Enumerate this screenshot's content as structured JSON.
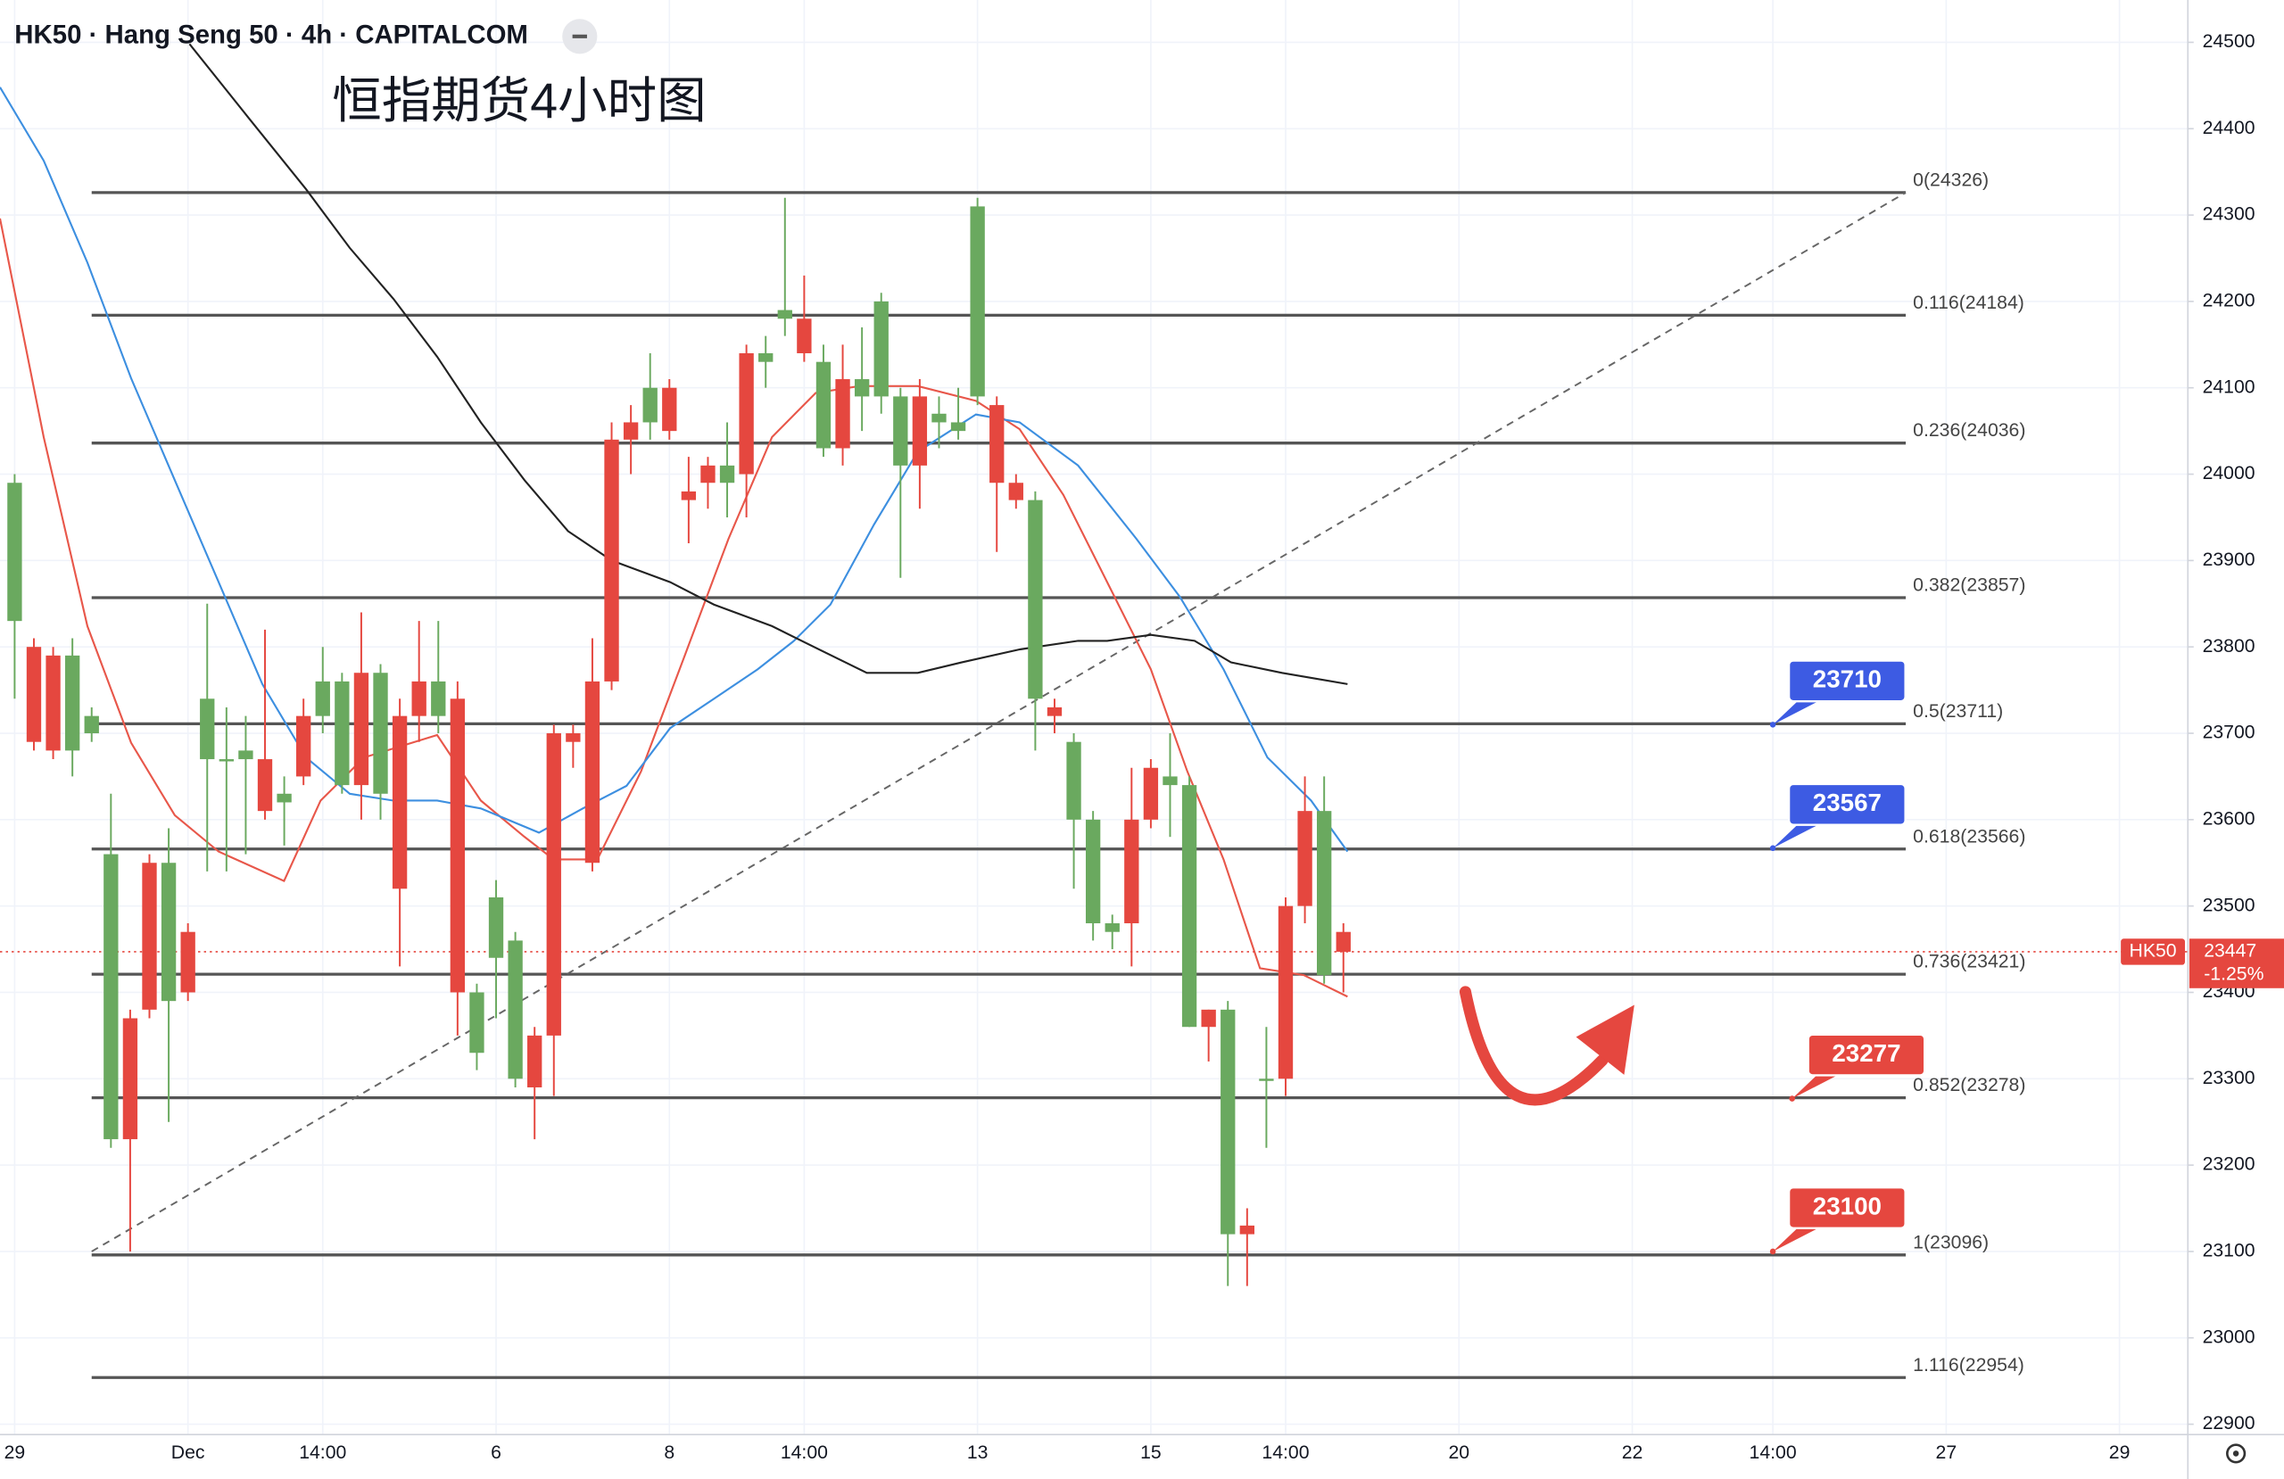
{
  "chart_data": {
    "type": "candlestick",
    "title": "HK50 · Hang Seng 50 · 4h · CAPITALCOM",
    "subtitle": "恒指期货4小时图",
    "up_color": "#6aa95f",
    "down_color": "#e5473f",
    "x": [
      0,
      1,
      2,
      3,
      4,
      5,
      6,
      7,
      8,
      9,
      10,
      11,
      12,
      13,
      14,
      15,
      16,
      17,
      18,
      19,
      20,
      21,
      22,
      23,
      24,
      25,
      26,
      27,
      28,
      29,
      30,
      31,
      32,
      33,
      34,
      35,
      36,
      37,
      38,
      39,
      40,
      41,
      42,
      43,
      44,
      45,
      46,
      47,
      48,
      49,
      50,
      51,
      52,
      53,
      54,
      55,
      56,
      57,
      58,
      59,
      60,
      61,
      62,
      63,
      64,
      65,
      66,
      67,
      68,
      69
    ],
    "open": [
      23830,
      23800,
      23790,
      23680,
      23700,
      23230,
      23370,
      23550,
      23390,
      23470,
      23670,
      23670,
      23670,
      23670,
      23620,
      23720,
      23720,
      23640,
      23770,
      23630,
      23720,
      23760,
      23720,
      23740,
      23330,
      23440,
      23300,
      23350,
      23700,
      23700,
      23760,
      24040,
      24060,
      24060,
      24100,
      23980,
      24010,
      23990,
      24140,
      24130,
      24180,
      24180,
      24030,
      24110,
      24090,
      24090,
      24010,
      24090,
      24060,
      24050,
      24090,
      24080,
      23990,
      23740,
      23730,
      23600,
      23480,
      23470,
      23600,
      23660,
      23640,
      23360,
      23380,
      23120,
      23130,
      23300,
      23500,
      23610,
      23420,
      23470
    ],
    "high": [
      24000,
      23810,
      23800,
      23810,
      23730,
      23630,
      23380,
      23560,
      23590,
      23480,
      23850,
      23730,
      23720,
      23820,
      23650,
      23740,
      23800,
      23770,
      23840,
      23780,
      23740,
      23830,
      23830,
      23760,
      23410,
      23530,
      23470,
      23360,
      23710,
      23710,
      23810,
      24060,
      24080,
      24140,
      24110,
      24020,
      24020,
      24060,
      24150,
      24160,
      24320,
      24230,
      24150,
      24150,
      24170,
      24210,
      24100,
      24110,
      24090,
      24100,
      24320,
      24090,
      24000,
      23980,
      23740,
      23700,
      23610,
      23490,
      23660,
      23670,
      23700,
      23650,
      23380,
      23390,
      23150,
      23360,
      23510,
      23650,
      23650,
      23480
    ],
    "low": [
      23740,
      23680,
      23670,
      23650,
      23690,
      23220,
      23100,
      23370,
      23250,
      23390,
      23540,
      23540,
      23560,
      23600,
      23570,
      23640,
      23700,
      23630,
      23600,
      23600,
      23430,
      23690,
      23700,
      23350,
      23310,
      23370,
      23290,
      23230,
      23280,
      23660,
      23540,
      23750,
      24000,
      24040,
      24040,
      23920,
      23960,
      23950,
      23950,
      24100,
      24160,
      24130,
      24020,
      24010,
      24050,
      24070,
      23880,
      23960,
      24030,
      24040,
      24080,
      23910,
      23960,
      23680,
      23700,
      23520,
      23460,
      23450,
      23430,
      23590,
      23580,
      23360,
      23320,
      23060,
      23060,
      23220,
      23280,
      23480,
      23410,
      23400
    ],
    "close": [
      23990,
      23690,
      23680,
      23790,
      23720,
      23560,
      23230,
      23380,
      23550,
      23400,
      23740,
      23670,
      23680,
      23610,
      23630,
      23650,
      23760,
      23760,
      23640,
      23770,
      23520,
      23720,
      23760,
      23400,
      23400,
      23510,
      23460,
      23290,
      23350,
      23690,
      23550,
      23760,
      24040,
      24100,
      24050,
      23970,
      23990,
      24010,
      24000,
      24140,
      24190,
      24140,
      24130,
      24030,
      24110,
      24200,
      24090,
      24010,
      24070,
      24060,
      24310,
      23990,
      23970,
      23970,
      23720,
      23690,
      23600,
      23480,
      23480,
      23600,
      23650,
      23640,
      23360,
      23380,
      23120,
      23300,
      23300,
      23500,
      23610,
      23447
    ],
    "moving_averages": [
      {
        "color": "#e8574a",
        "x": [
          -0.76,
          1.51,
          3.78,
          6.05,
          8.32,
          10.59,
          13.99,
          15.89,
          18.15,
          21.94,
          24.21,
          26.48,
          27.99,
          30.26,
          32.53,
          34.8,
          37.07,
          39.33,
          41.6,
          43.87,
          46.9,
          49.92,
          52.19,
          54.46,
          56.73,
          59,
          60.89,
          62.78,
          64.67,
          66.94,
          69.21
        ],
        "values": [
          24296,
          24043,
          23824,
          23689,
          23605,
          23563,
          23529,
          23622,
          23672,
          23698,
          23622,
          23580,
          23554,
          23554,
          23656,
          23790,
          23925,
          24043,
          24094,
          24102,
          24102,
          24085,
          24052,
          23976,
          23875,
          23774,
          23656,
          23554,
          23428,
          23420,
          23395
        ]
      },
      {
        "color": "#3d8fe0",
        "x": [
          -0.76,
          1.51,
          3.78,
          6.05,
          8.32,
          10.59,
          12.86,
          15.13,
          17.4,
          19.67,
          21.94,
          24.21,
          27.23,
          29.5,
          31.77,
          34.04,
          36.31,
          38.58,
          40.47,
          42.36,
          44.63,
          46.9,
          49.92,
          52.19,
          55.22,
          58.25,
          60.51,
          62.78,
          65.05,
          67.32,
          69.21
        ],
        "values": [
          24448,
          24363,
          24245,
          24111,
          23993,
          23875,
          23757,
          23672,
          23630,
          23622,
          23622,
          23613,
          23585,
          23613,
          23639,
          23706,
          23740,
          23774,
          23807,
          23849,
          23942,
          24026,
          24069,
          24060,
          24010,
          23925,
          23858,
          23774,
          23672,
          23622,
          23563
        ]
      },
      {
        "color": "#222222",
        "x": [
          9.08,
          12.1,
          15.13,
          17.4,
          19.67,
          21.94,
          24.21,
          26.48,
          28.74,
          31.01,
          34.04,
          36.31,
          39.33,
          41.6,
          44.25,
          46.9,
          49.17,
          52.19,
          55.22,
          56.73,
          59,
          61.27,
          63.16,
          65.81,
          69.21
        ],
        "values": [
          24498,
          24414,
          24330,
          24262,
          24203,
          24136,
          24060,
          23993,
          23934,
          23900,
          23875,
          23849,
          23824,
          23799,
          23770,
          23770,
          23782,
          23797,
          23807,
          23807,
          23814,
          23807,
          23782,
          23770,
          23757
        ]
      }
    ],
    "fib_x": [
      4,
      98.2
    ],
    "fib_levels": [
      {
        "value": 24326,
        "label": "0(24326)"
      },
      {
        "value": 24184,
        "label": "0.116(24184)"
      },
      {
        "value": 24036,
        "label": "0.236(24036)"
      },
      {
        "value": 23857,
        "label": "0.382(23857)"
      },
      {
        "value": 23711,
        "label": "0.5(23711)"
      },
      {
        "value": 23566,
        "label": "0.618(23566)"
      },
      {
        "value": 23421,
        "label": "0.736(23421)"
      },
      {
        "value": 23278,
        "label": "0.852(23278)"
      },
      {
        "value": 23096,
        "label": "1(23096)"
      },
      {
        "value": 22954,
        "label": "1.116(22954)"
      }
    ],
    "trendline": {
      "x": [
        4,
        98.2
      ],
      "values": [
        23100,
        24326
      ]
    },
    "annotations": [
      {
        "value": 23710,
        "x": 91.3,
        "color": "#3d5be3"
      },
      {
        "value": 23567,
        "x": 91.3,
        "color": "#3d5be3"
      },
      {
        "value": 23277,
        "x": 92.3,
        "color": "#e5473f"
      },
      {
        "value": 23100,
        "x": 91.3,
        "color": "#e5473f"
      }
    ],
    "last_price": {
      "value": 23447,
      "symbol": "HK50",
      "change": "-1.25%",
      "color": "#e5473f"
    },
    "xlim": [
      -0.76,
      112.85
    ],
    "ylim": [
      22888,
      24549
    ],
    "xticks": [
      {
        "value": 0,
        "label": "29"
      },
      {
        "value": 9,
        "label": "Dec"
      },
      {
        "value": 16,
        "label": "14:00"
      },
      {
        "value": 25,
        "label": "6"
      },
      {
        "value": 34,
        "label": "8"
      },
      {
        "value": 41,
        "label": "14:00"
      },
      {
        "value": 50,
        "label": "13"
      },
      {
        "value": 59,
        "label": "15"
      },
      {
        "value": 66,
        "label": "14:00"
      },
      {
        "value": 75,
        "label": "20"
      },
      {
        "value": 84,
        "label": "22"
      },
      {
        "value": 91.3,
        "label": "14:00"
      },
      {
        "value": 100.3,
        "label": "27"
      },
      {
        "value": 109.3,
        "label": "29"
      }
    ],
    "yticks": [
      22900,
      23000,
      23100,
      23200,
      23300,
      23400,
      23500,
      23600,
      23700,
      23800,
      23900,
      24000,
      24100,
      24200,
      24300,
      24400,
      24500
    ],
    "grid": true
  }
}
